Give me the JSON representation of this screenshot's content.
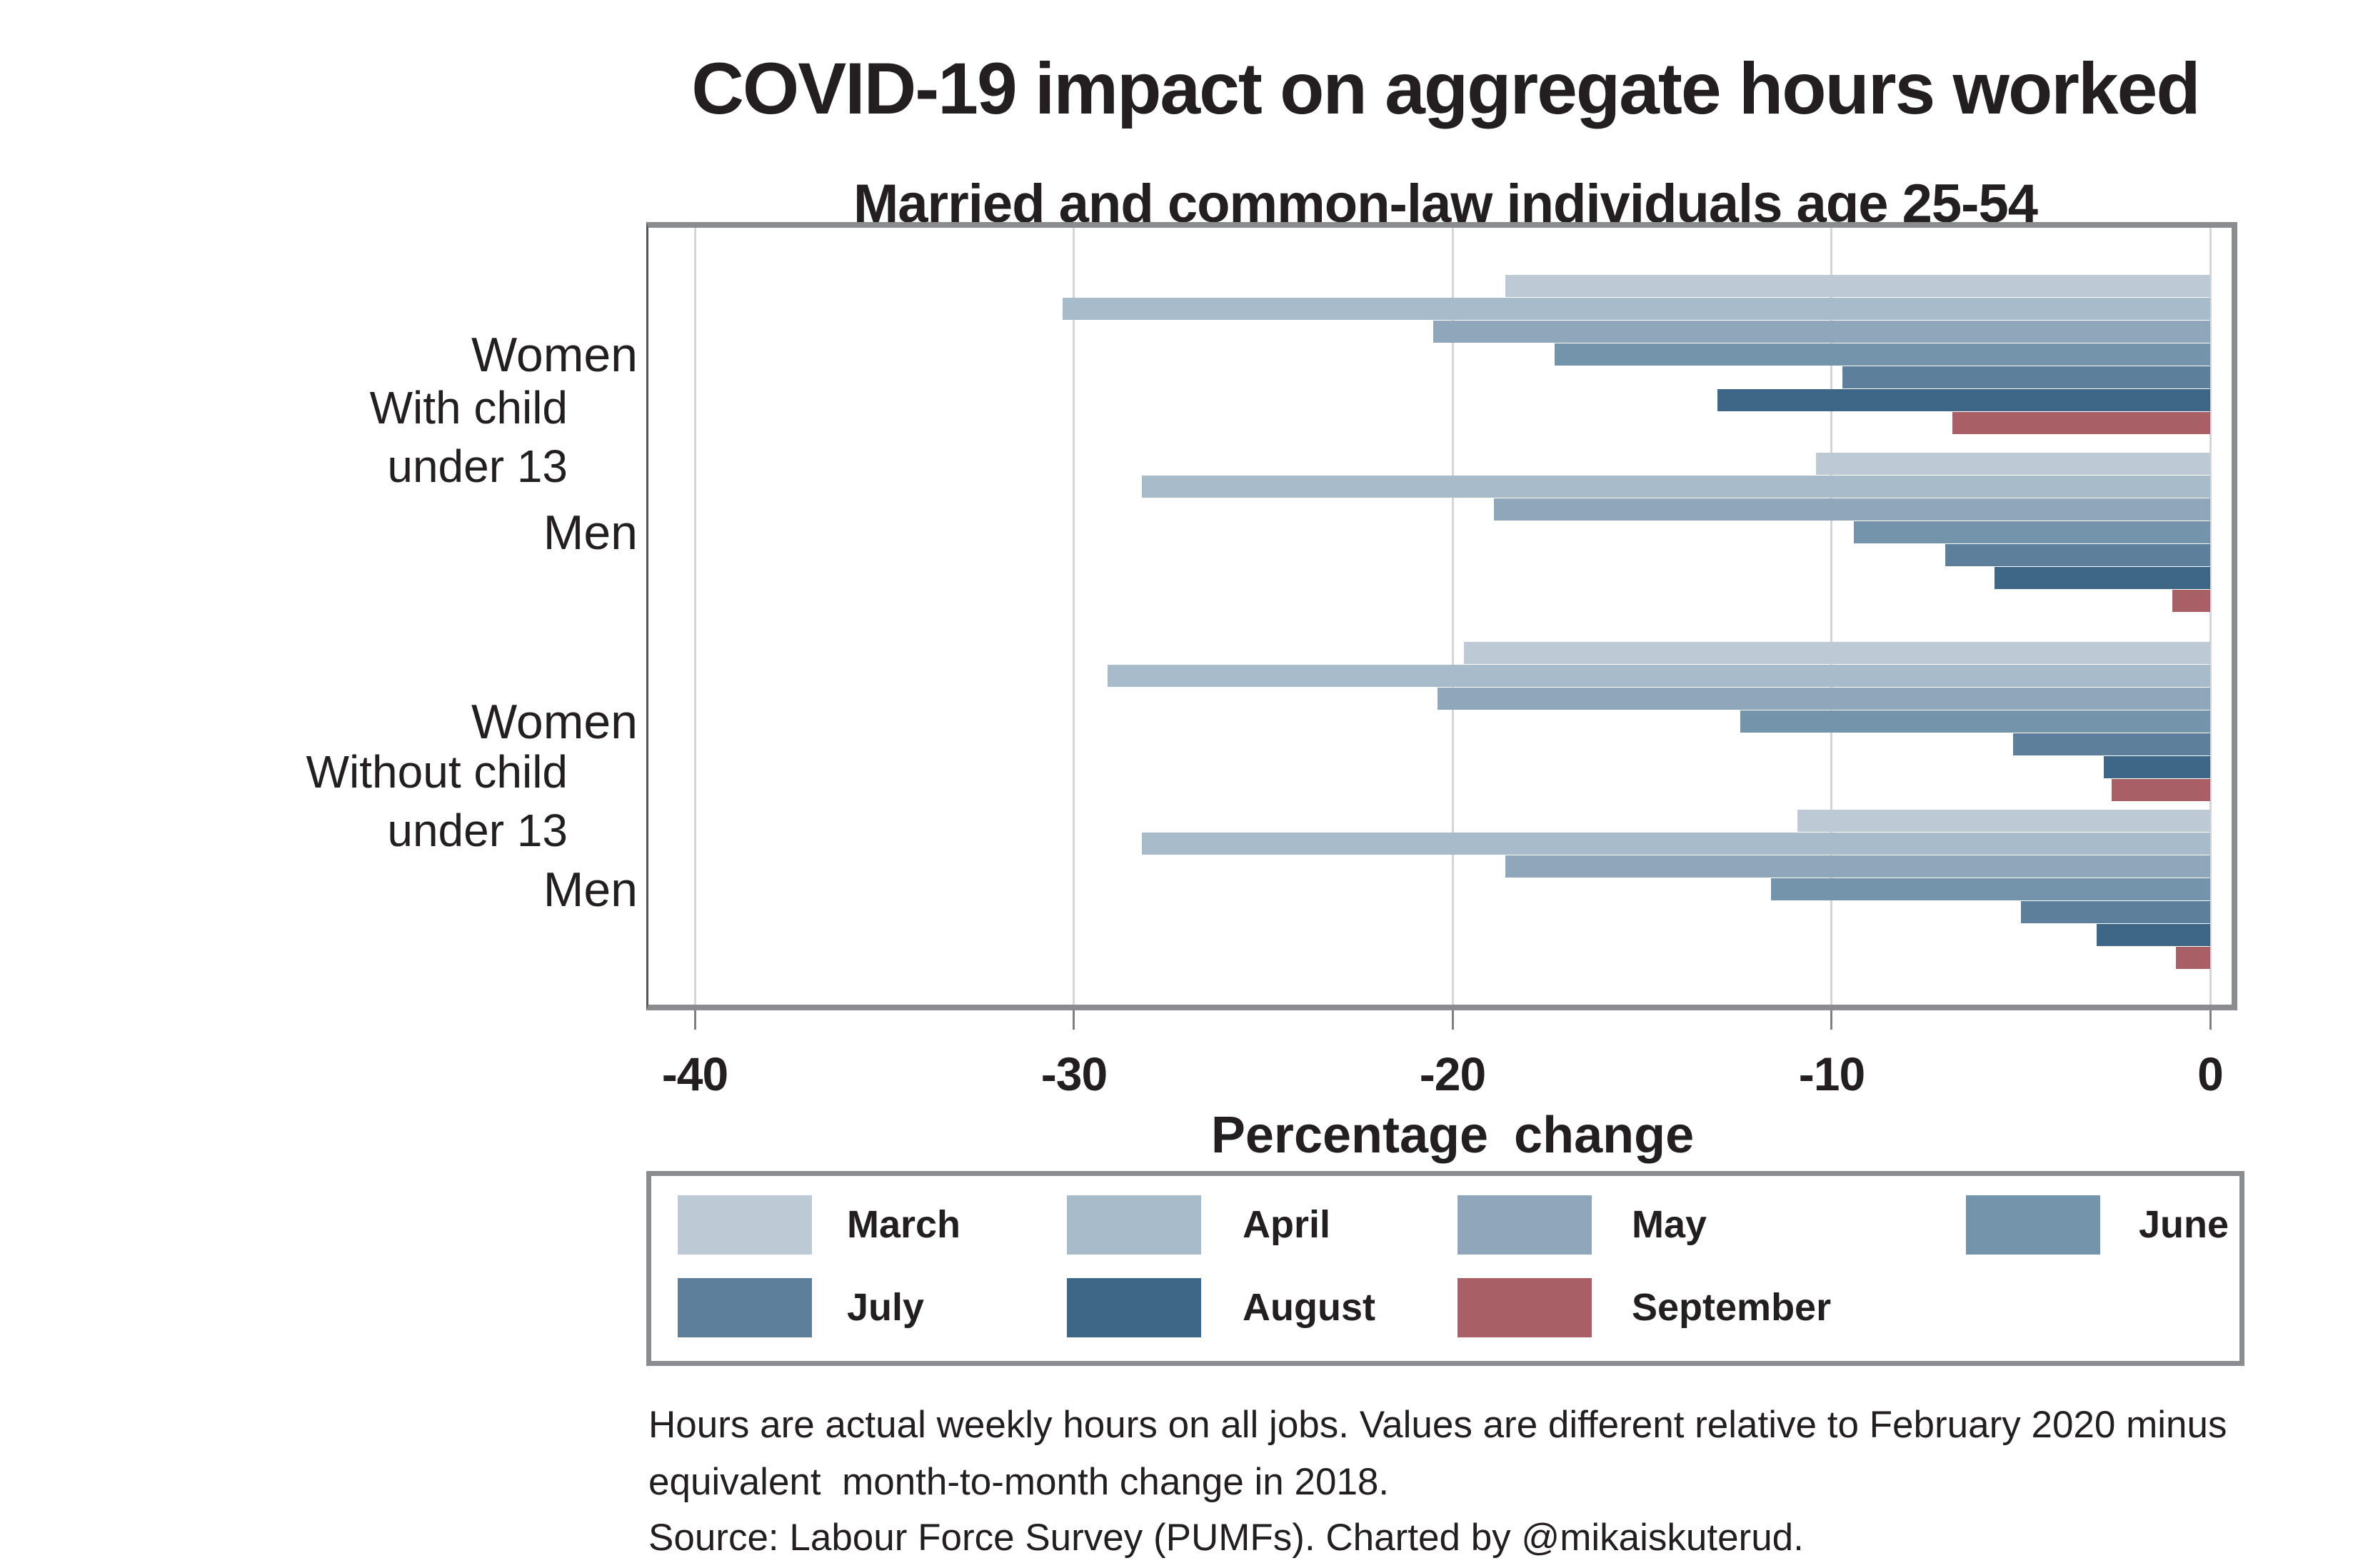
{
  "page": {
    "background": "#ffffff"
  },
  "title": "COVID-19 impact on aggregate hours worked",
  "subtitle": "Married and common-law individuals age 25-54",
  "chart_data": {
    "type": "bar",
    "orientation": "horizontal",
    "title": "COVID-19 impact on aggregate hours worked",
    "subtitle": "Married and common-law individuals age 25-54",
    "xlabel": "Percentage change",
    "x_ticks": [
      -40,
      -30,
      -20,
      -10,
      0
    ],
    "xlim": [
      -41.2,
      0.6
    ],
    "grid": true,
    "legend_position": "bottom",
    "categories": [
      "March",
      "April",
      "May",
      "June",
      "July",
      "August",
      "September"
    ],
    "colors": {
      "March": "#bdc9d5",
      "April": "#a8bbcb",
      "May": "#8fa6bb",
      "June": "#7494ac",
      "July": "#5d7f9c",
      "August": "#3e6787",
      "September": "#a95f66"
    },
    "sections": [
      {
        "label": [
          "With child",
          "under 13"
        ],
        "groups": [
          {
            "label": "Women",
            "values": [
              -18.6,
              -30.3,
              -20.5,
              -17.3,
              -9.7,
              -13.0,
              -6.8
            ]
          },
          {
            "label": "Men",
            "values": [
              -10.4,
              -28.2,
              -18.9,
              -9.4,
              -7.0,
              -5.7,
              -1.0
            ]
          }
        ]
      },
      {
        "label": [
          "Without child",
          "under 13"
        ],
        "groups": [
          {
            "label": "Women",
            "values": [
              -19.7,
              -29.1,
              -20.4,
              -12.4,
              -5.2,
              -2.8,
              -2.6
            ]
          },
          {
            "label": "Men",
            "values": [
              -10.9,
              -28.2,
              -18.6,
              -11.6,
              -5.0,
              -3.0,
              -0.9
            ]
          }
        ]
      }
    ],
    "legend_rows": [
      [
        "March",
        "April",
        "May",
        "June"
      ],
      [
        "July",
        "August",
        "September"
      ]
    ]
  },
  "footnotes": [
    "Hours are actual weekly hours on all jobs. Values are different relative to February 2020 minus",
    "equivalent  month-to-month change in 2018.",
    "Source: Labour Force Survey (PUMFs). Charted by @mikaiskuterud."
  ]
}
